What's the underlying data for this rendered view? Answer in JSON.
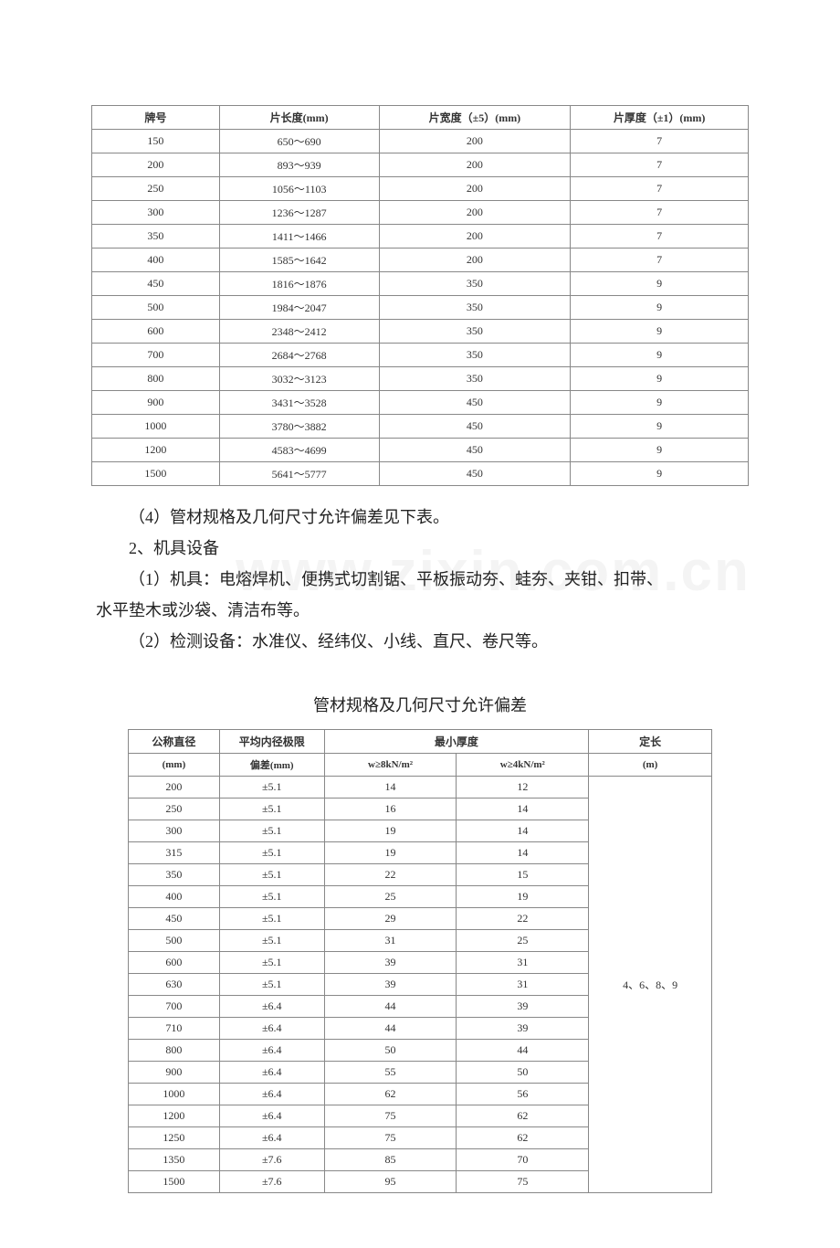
{
  "table1": {
    "headers": [
      "牌号",
      "片长度(mm)",
      "片宽度（±5）(mm)",
      "片厚度（±1）(mm)"
    ],
    "rows": [
      [
        "150",
        "650～690",
        "200",
        "7"
      ],
      [
        "200",
        "893～939",
        "200",
        "7"
      ],
      [
        "250",
        "1056～1103",
        "200",
        "7"
      ],
      [
        "300",
        "1236～1287",
        "200",
        "7"
      ],
      [
        "350",
        "1411～1466",
        "200",
        "7"
      ],
      [
        "400",
        "1585～1642",
        "200",
        "7"
      ],
      [
        "450",
        "1816～1876",
        "350",
        "9"
      ],
      [
        "500",
        "1984～2047",
        "350",
        "9"
      ],
      [
        "600",
        "2348～2412",
        "350",
        "9"
      ],
      [
        "700",
        "2684～2768",
        "350",
        "9"
      ],
      [
        "800",
        "3032～3123",
        "350",
        "9"
      ],
      [
        "900",
        "3431～3528",
        "450",
        "9"
      ],
      [
        "1000",
        "3780～3882",
        "450",
        "9"
      ],
      [
        "1200",
        "4583～4699",
        "450",
        "9"
      ],
      [
        "1500",
        "5641～5777",
        "450",
        "9"
      ]
    ]
  },
  "text": {
    "p1": "（4）管材规格及几何尺寸允许偏差见下表。",
    "p2": "2、机具设备",
    "p3": "（1）机具：电熔焊机、便携式切割锯、平板振动夯、蛙夯、夹钳、扣带、",
    "p3b": "水平垫木或沙袋、清洁布等。",
    "p4": "（2）检测设备：水准仪、经纬仪、小线、直尺、卷尺等。"
  },
  "watermark": "www.zixin.com.cn",
  "caption2": "管材规格及几何尺寸允许偏差",
  "table2": {
    "headers_row1": [
      "公称直径",
      "平均内径极限",
      "最小厚度",
      "定长"
    ],
    "headers_row2_left": "(mm)",
    "headers_row2_mid": "偏差(mm)",
    "headers_row2_c3": "w≥8kN/m²",
    "headers_row2_c4": "w≥4kN/m²",
    "headers_row2_c5": "(m)",
    "merge_val": "4、6、8、9",
    "rows": [
      [
        "200",
        "±5.1",
        "14",
        "12"
      ],
      [
        "250",
        "±5.1",
        "16",
        "14"
      ],
      [
        "300",
        "±5.1",
        "19",
        "14"
      ],
      [
        "315",
        "±5.1",
        "19",
        "14"
      ],
      [
        "350",
        "±5.1",
        "22",
        "15"
      ],
      [
        "400",
        "±5.1",
        "25",
        "19"
      ],
      [
        "450",
        "±5.1",
        "29",
        "22"
      ],
      [
        "500",
        "±5.1",
        "31",
        "25"
      ],
      [
        "600",
        "±5.1",
        "39",
        "31"
      ],
      [
        "630",
        "±5.1",
        "39",
        "31"
      ],
      [
        "700",
        "±6.4",
        "44",
        "39"
      ],
      [
        "710",
        "±6.4",
        "44",
        "39"
      ],
      [
        "800",
        "±6.4",
        "50",
        "44"
      ],
      [
        "900",
        "±6.4",
        "55",
        "50"
      ],
      [
        "1000",
        "±6.4",
        "62",
        "56"
      ],
      [
        "1200",
        "±6.4",
        "75",
        "62"
      ],
      [
        "1250",
        "±6.4",
        "75",
        "62"
      ],
      [
        "1350",
        "±7.6",
        "85",
        "70"
      ],
      [
        "1500",
        "±7.6",
        "95",
        "75"
      ]
    ]
  }
}
